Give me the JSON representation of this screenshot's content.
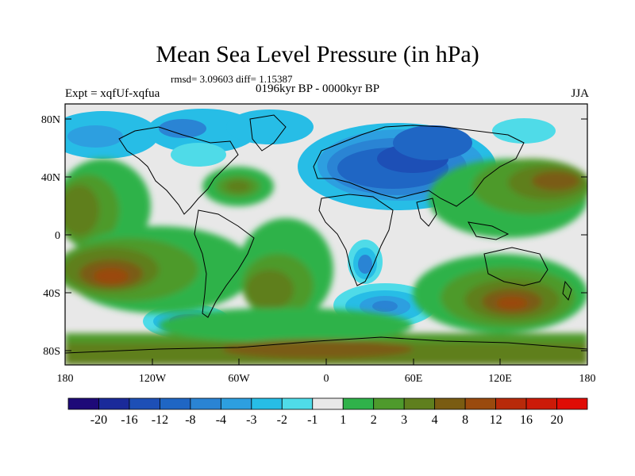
{
  "title": "Mean Sea Level Pressure (in hPa)",
  "stats": "rmsd= 3.09603  diff= 1.15387",
  "left_label": "Expt = xqfUf-xqfua",
  "center_label": "0196kyr BP - 0000kyr BP",
  "right_label": "JJA",
  "axes": {
    "x_ticks": [
      "180",
      "120W",
      "60W",
      "0",
      "60E",
      "120E",
      "180"
    ],
    "y_ticks": [
      "80N",
      "40N",
      "0",
      "40S",
      "80S"
    ]
  },
  "colorbar": {
    "labels": [
      "-20",
      "-16",
      "-12",
      "-8",
      "-4",
      "-3",
      "-2",
      "-1",
      "1",
      "2",
      "3",
      "4",
      "8",
      "12",
      "16",
      "20"
    ],
    "colors": [
      "#1e0a78",
      "#1a2a9a",
      "#1d4fb6",
      "#1f66c4",
      "#2a84d4",
      "#2d9fe0",
      "#27bde6",
      "#4fdbe8",
      "#e8e8e8",
      "#2fb24a",
      "#4e9a2c",
      "#5f7f1e",
      "#7a5c12",
      "#9a4a0e",
      "#b82a0a",
      "#cc1a08",
      "#e00c06"
    ]
  },
  "colors": {
    "land": "#000000",
    "neutral": "#e8e8e8"
  }
}
